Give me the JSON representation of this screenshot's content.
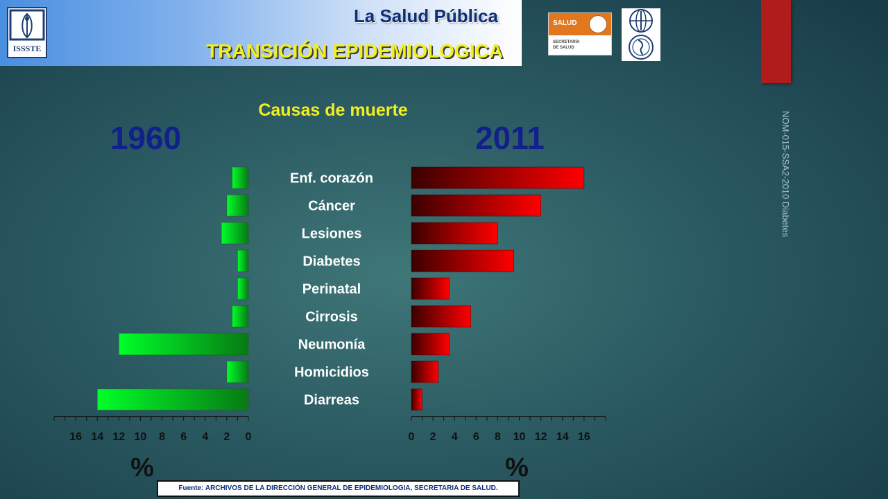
{
  "header": {
    "title": "La Salud Pública",
    "subtitle": "TRANSICIÓN EPIDEMIOLOGICA",
    "issste_label": "ISSSTE",
    "salud_label": "SALUD",
    "salud_sub_1": "SECRETARÍA",
    "salud_sub_2": "DE SALUD"
  },
  "side_note": "NOM-015-SSA2-2010 Diabetes",
  "source": "Fuente: ARCHIVOS DE LA DIRECCIÓN GENERAL DE EPIDEMIOLOGIA, SECRETARIA DE SALUD.",
  "colors": {
    "accent_yellow": "#f2ef1f",
    "year_blue": "#12208c",
    "bar_1960": "#00ff22",
    "bar_2011": "#ff0000",
    "red_bar": "#b01b1b"
  },
  "chart_data": {
    "type": "bar",
    "orientation": "horizontal",
    "title": "Causas de muerte",
    "categories": [
      "Enf. corazón",
      "Cáncer",
      "Lesiones",
      "Diabetes",
      "Perinatal",
      "Cirrosis",
      "Neumonía",
      "Homicidios",
      "Diarreas"
    ],
    "series": [
      {
        "name": "1960",
        "values": [
          1.5,
          2,
          2.5,
          1,
          1,
          1.5,
          12,
          2,
          14
        ]
      },
      {
        "name": "2011",
        "values": [
          16,
          12,
          8,
          9.5,
          3.5,
          5.5,
          3.5,
          2.5,
          1
        ]
      }
    ],
    "xticks": [
      0,
      2,
      4,
      6,
      8,
      10,
      12,
      14,
      16
    ],
    "xlim": [
      0,
      18
    ],
    "xlabel_left": "%",
    "xlabel_right": "%",
    "grid": false
  }
}
